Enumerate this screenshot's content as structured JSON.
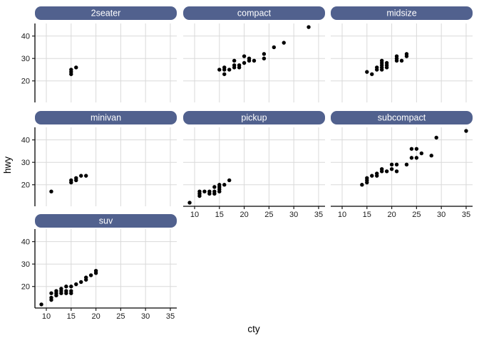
{
  "chart_data": {
    "type": "scatter",
    "title": "",
    "xlabel": "cty",
    "ylabel": "hwy",
    "facet_variable": "class",
    "x_ticks": [
      10,
      15,
      20,
      25,
      30,
      35
    ],
    "y_ticks": [
      20,
      30,
      40
    ],
    "x_domain": [
      7.7,
      36.3
    ],
    "y_domain": [
      10.4,
      45.6
    ],
    "grid": "major-only",
    "legend": "none",
    "facets": [
      {
        "label": "2seater",
        "points": [
          [
            15,
            23
          ],
          [
            15,
            24
          ],
          [
            15,
            25
          ],
          [
            16,
            26
          ]
        ]
      },
      {
        "label": "compact",
        "points": [
          [
            15,
            25
          ],
          [
            16,
            23
          ],
          [
            16,
            25
          ],
          [
            16,
            26
          ],
          [
            17,
            25
          ],
          [
            18,
            26
          ],
          [
            18,
            27
          ],
          [
            18,
            29
          ],
          [
            19,
            26
          ],
          [
            19,
            27
          ],
          [
            20,
            28
          ],
          [
            20,
            31
          ],
          [
            21,
            29
          ],
          [
            21,
            30
          ],
          [
            22,
            29
          ],
          [
            24,
            30
          ],
          [
            24,
            32
          ],
          [
            26,
            35
          ],
          [
            28,
            37
          ],
          [
            33,
            44
          ]
        ]
      },
      {
        "label": "midsize",
        "points": [
          [
            15,
            24
          ],
          [
            16,
            23
          ],
          [
            17,
            25
          ],
          [
            17,
            26
          ],
          [
            18,
            25
          ],
          [
            18,
            26
          ],
          [
            18,
            27
          ],
          [
            18,
            28
          ],
          [
            18,
            29
          ],
          [
            19,
            26
          ],
          [
            19,
            27
          ],
          [
            19,
            28
          ],
          [
            21,
            29
          ],
          [
            21,
            30
          ],
          [
            21,
            31
          ],
          [
            22,
            29
          ],
          [
            23,
            31
          ],
          [
            23,
            32
          ]
        ]
      },
      {
        "label": "minivan",
        "points": [
          [
            11,
            17
          ],
          [
            15,
            21
          ],
          [
            15,
            22
          ],
          [
            16,
            22
          ],
          [
            16,
            23
          ],
          [
            17,
            24
          ],
          [
            18,
            24
          ]
        ]
      },
      {
        "label": "pickup",
        "points": [
          [
            9,
            12
          ],
          [
            11,
            15
          ],
          [
            11,
            16
          ],
          [
            11,
            17
          ],
          [
            12,
            17
          ],
          [
            13,
            16
          ],
          [
            13,
            17
          ],
          [
            14,
            16
          ],
          [
            14,
            17
          ],
          [
            14,
            19
          ],
          [
            15,
            17
          ],
          [
            15,
            18
          ],
          [
            15,
            19
          ],
          [
            15,
            20
          ],
          [
            16,
            20
          ],
          [
            17,
            22
          ]
        ]
      },
      {
        "label": "subcompact",
        "points": [
          [
            14,
            20
          ],
          [
            15,
            21
          ],
          [
            15,
            22
          ],
          [
            15,
            23
          ],
          [
            16,
            24
          ],
          [
            17,
            24
          ],
          [
            17,
            25
          ],
          [
            18,
            26
          ],
          [
            18,
            27
          ],
          [
            19,
            26
          ],
          [
            20,
            27
          ],
          [
            20,
            29
          ],
          [
            21,
            26
          ],
          [
            21,
            29
          ],
          [
            23,
            29
          ],
          [
            24,
            32
          ],
          [
            24,
            36
          ],
          [
            25,
            32
          ],
          [
            25,
            36
          ],
          [
            26,
            34
          ],
          [
            28,
            33
          ],
          [
            29,
            41
          ],
          [
            35,
            44
          ]
        ]
      },
      {
        "label": "suv",
        "points": [
          [
            9,
            12
          ],
          [
            11,
            14
          ],
          [
            11,
            15
          ],
          [
            11,
            17
          ],
          [
            12,
            16
          ],
          [
            12,
            17
          ],
          [
            12,
            18
          ],
          [
            13,
            17
          ],
          [
            13,
            18
          ],
          [
            13,
            19
          ],
          [
            14,
            17
          ],
          [
            14,
            18
          ],
          [
            14,
            20
          ],
          [
            15,
            17
          ],
          [
            15,
            18
          ],
          [
            15,
            20
          ],
          [
            16,
            21
          ],
          [
            17,
            22
          ],
          [
            18,
            23
          ],
          [
            18,
            24
          ],
          [
            19,
            25
          ],
          [
            20,
            26
          ],
          [
            20,
            27
          ]
        ]
      }
    ]
  },
  "style": {
    "background": "#FFFFFF",
    "strip_fill": "#51618E",
    "strip_text_color": "#FFFFFF",
    "grid_color": "#D9D9D9",
    "axis_line_color": "#000000",
    "tick_mark_color": "#1A1A1A",
    "tick_label_color": "#1A1A1A",
    "axis_title_color": "#000000",
    "point_color": "#000000"
  }
}
